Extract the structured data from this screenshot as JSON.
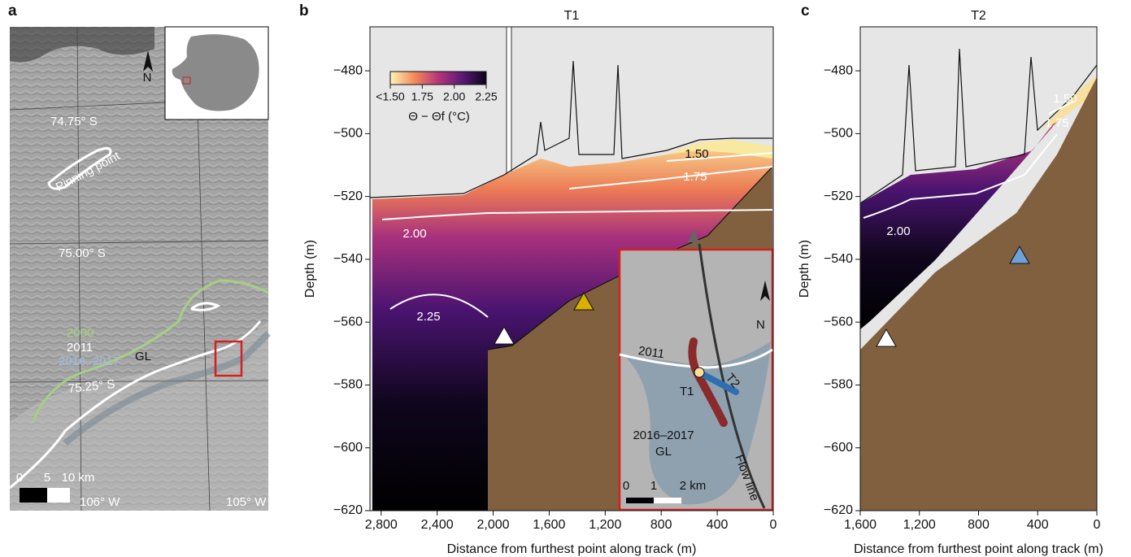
{
  "panel_labels": [
    "a",
    "b",
    "c"
  ],
  "map": {
    "latitudes": [
      "74.75° S",
      "75.00° S",
      "75.25° S"
    ],
    "longitudes": [
      "106° W",
      "105° W"
    ],
    "pinning_point": "Pinning point",
    "north": "N",
    "grounding_lines": [
      "2000",
      "2011",
      "2016–2017"
    ],
    "gl": "GL",
    "scale_bar": [
      "0",
      "5",
      "10 km"
    ]
  },
  "chart_data": [
    {
      "type": "section",
      "title": "T1",
      "x_label": "Distance from furthest point along track (m)",
      "y_label": "Depth (m)",
      "xlim": [
        2880,
        0
      ],
      "xticks": [
        {
          "value": 2800,
          "label": "2,800"
        },
        {
          "value": 2400,
          "label": "2,400"
        },
        {
          "value": 2000,
          "label": "2,000"
        },
        {
          "value": 1600,
          "label": "1,600"
        },
        {
          "value": 1200,
          "label": "1,200"
        },
        800,
        400,
        0
      ],
      "ylim": [
        -620,
        -466
      ],
      "yticks": [
        {
          "value": -480,
          "label": "−480"
        },
        {
          "value": -500,
          "label": "−500"
        },
        {
          "value": -520,
          "label": "−520"
        },
        {
          "value": -540,
          "label": "−540"
        },
        {
          "value": -560,
          "label": "−560"
        },
        {
          "value": -580,
          "label": "−580"
        },
        {
          "value": -600,
          "label": "−600"
        },
        {
          "value": -620,
          "label": "−620"
        }
      ],
      "contour_labels": [
        "1.50",
        "1.75",
        "2.00",
        "2.25"
      ],
      "colorbar": {
        "label": "Θ − Θf (°C)",
        "clim": [
          1.5,
          2.25
        ],
        "ticks": [
          {
            "value": 1.5,
            "label": "<1.50"
          },
          1.75,
          {
            "value": 2,
            "label": "2.00"
          },
          2.25
        ]
      },
      "inset": {
        "track_labels": [
          "T1",
          "T2"
        ],
        "grounding_lines": [
          "2011",
          "2016–2017"
        ],
        "gl": "GL",
        "flow_line": "Flow line",
        "north": "N",
        "scale_bar": [
          "0",
          "1",
          "2 km"
        ]
      }
    },
    {
      "type": "section",
      "title": "T2",
      "x_label": "Distance from furthest point along track (m)",
      "y_label": "Depth (m)",
      "xlim": [
        1600,
        0
      ],
      "xticks": [
        {
          "value": 1600,
          "label": "1,600"
        },
        {
          "value": 1200,
          "label": "1,200"
        },
        800,
        400,
        0
      ],
      "ylim": [
        -620,
        -466
      ],
      "yticks": [
        {
          "value": -480,
          "label": "−480"
        },
        {
          "value": -500,
          "label": "−500"
        },
        {
          "value": -520,
          "label": "−520"
        },
        {
          "value": -540,
          "label": "−540"
        },
        {
          "value": -560,
          "label": "−560"
        },
        {
          "value": -580,
          "label": "−580"
        },
        {
          "value": -600,
          "label": "−600"
        },
        {
          "value": -620,
          "label": "−620"
        }
      ],
      "contour_labels": [
        "1.50",
        "1.75",
        "2.00"
      ]
    }
  ]
}
